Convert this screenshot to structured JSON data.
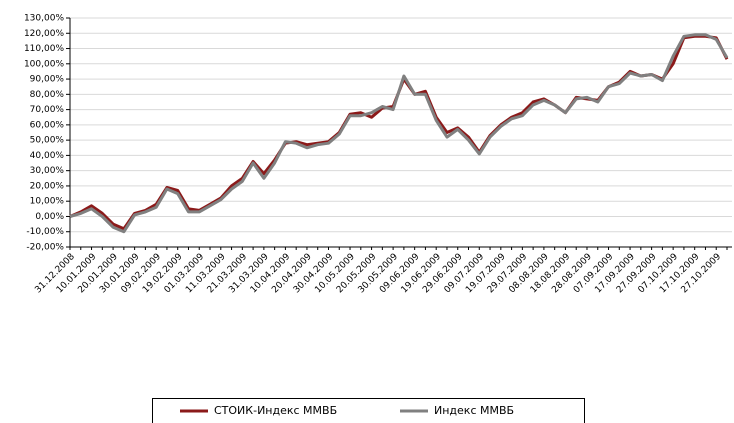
{
  "chart_data": {
    "type": "line",
    "categories": [
      "31.12.2008",
      null,
      "10.01.2009",
      null,
      "20.01.2009",
      null,
      "30.01.2009",
      null,
      "09.02.2009",
      null,
      "19.02.2009",
      null,
      "01.03.2009",
      null,
      "11.03.2009",
      null,
      "21.03.2009",
      null,
      "31.03.2009",
      null,
      "10.04.2009",
      null,
      "20.04.2009",
      null,
      "30.04.2009",
      null,
      "10.05.2009",
      null,
      "20.05.2009",
      null,
      "30.05.2009",
      null,
      "09.06.2009",
      null,
      "19.06.2009",
      null,
      "29.06.2009",
      null,
      "09.07.2009",
      null,
      "19.07.2009",
      null,
      "29.07.2009",
      null,
      "08.08.2009",
      null,
      "18.08.2009",
      null,
      "28.08.2009",
      null,
      "07.09.2009",
      null,
      "17.09.2009",
      null,
      "27.09.2009",
      null,
      "07.10.2009",
      null,
      "17.10.2009",
      null,
      "27.10.2009",
      null
    ],
    "series": [
      {
        "name": "СТОИК-Индекс ММВБ",
        "color": "#8b1a1a",
        "values": [
          0,
          3,
          7,
          2,
          -5,
          -8,
          2,
          4,
          8,
          19,
          17,
          5,
          4,
          8,
          12,
          20,
          25,
          36,
          28,
          37,
          48,
          49,
          47,
          48,
          49,
          55,
          67,
          68,
          65,
          71,
          72,
          90,
          80,
          82,
          65,
          55,
          58,
          52,
          42,
          53,
          60,
          65,
          68,
          75,
          77,
          73,
          68,
          78,
          77,
          76,
          85,
          88,
          95,
          92,
          93,
          90,
          100,
          117,
          118,
          118,
          117,
          103
        ]
      },
      {
        "name": "Индекс ММВБ",
        "color": "#808080",
        "values": [
          0,
          2,
          5,
          0,
          -7,
          -10,
          1,
          3,
          6,
          18,
          15,
          3,
          3,
          7,
          11,
          18,
          23,
          35,
          25,
          35,
          49,
          48,
          45,
          47,
          48,
          54,
          66,
          66,
          68,
          72,
          70,
          92,
          80,
          80,
          63,
          52,
          57,
          50,
          41,
          52,
          59,
          64,
          66,
          73,
          76,
          73,
          68,
          77,
          78,
          75,
          85,
          87,
          94,
          92,
          93,
          89,
          105,
          118,
          119,
          119,
          116,
          104
        ]
      }
    ],
    "ylim": [
      -20,
      130
    ],
    "yticks": [
      {
        "value": -20,
        "label": "-20,00%"
      },
      {
        "value": -10,
        "label": "-10,00%"
      },
      {
        "value": 0,
        "label": "0,00%"
      },
      {
        "value": 10,
        "label": "10,00%"
      },
      {
        "value": 20,
        "label": "20,00%"
      },
      {
        "value": 30,
        "label": "30,00%"
      },
      {
        "value": 40,
        "label": "40,00%"
      },
      {
        "value": 50,
        "label": "50,00%"
      },
      {
        "value": 60,
        "label": "60,00%"
      },
      {
        "value": 70,
        "label": "70,00%"
      },
      {
        "value": 80,
        "label": "80,00%"
      },
      {
        "value": 90,
        "label": "90,00%"
      },
      {
        "value": 100,
        "label": "100,00%"
      },
      {
        "value": 110,
        "label": "110,00%"
      },
      {
        "value": 120,
        "label": "120,00%"
      },
      {
        "value": 130,
        "label": "130,00%"
      }
    ],
    "grid": true,
    "legend": "bottom"
  }
}
